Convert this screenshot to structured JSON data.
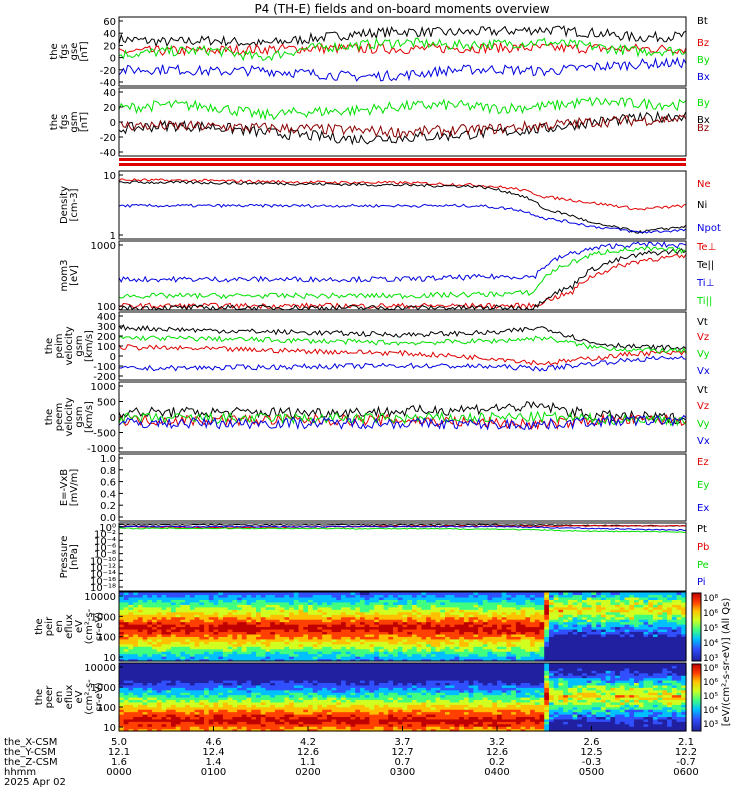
{
  "title": "P4 (TH-E) fields and on-board moments overview",
  "colors": {
    "black": "#000000",
    "red": "#e00000",
    "green": "#00e000",
    "blue": "#0000e0",
    "darkred": "#8b0000"
  },
  "x_axis": {
    "ticks": [
      "0000",
      "0100",
      "0200",
      "0300",
      "0400",
      "0500",
      "0600"
    ],
    "rows": [
      {
        "label": "the_X-CSM",
        "values": [
          "5.0",
          "4.6",
          "4.2",
          "3.7",
          "3.2",
          "2.6",
          "2.1"
        ]
      },
      {
        "label": "the_Y-CSM",
        "values": [
          "12.1",
          "12.4",
          "12.6",
          "12.7",
          "12.6",
          "12.5",
          "12.2"
        ]
      },
      {
        "label": "the_Z-CSM",
        "values": [
          "1.6",
          "1.4",
          "1.1",
          "0.7",
          "0.2",
          "-0.3",
          "-0.7"
        ]
      },
      {
        "label": "hhmm",
        "values": [
          "0000",
          "0100",
          "0200",
          "0300",
          "0400",
          "0500",
          "0600"
        ]
      }
    ],
    "date": "2025 Apr 02"
  },
  "colorbar": {
    "label": "[eV/(cm²-s-sr-eV)] (All Qs)",
    "ticks_top": [
      "10⁸",
      "10⁶",
      "10⁵",
      "10⁴",
      "10³"
    ],
    "ticks_bottom": [
      "10⁸",
      "10⁶",
      "10⁵",
      "10⁴",
      "10³"
    ]
  },
  "chart_data": [
    {
      "type": "line",
      "panel": "fgs_gse",
      "ylabel": [
        "the",
        "fgs",
        "gse",
        "[nT]"
      ],
      "yticks": [
        "60",
        "40",
        "20",
        "0",
        "-20",
        "-40"
      ],
      "ylim": [
        -45,
        65
      ],
      "series": [
        {
          "name": "Bt",
          "color": "#000000",
          "x": [
            0,
            0.5,
            1,
            1.5,
            2,
            2.5,
            3,
            3.5,
            4,
            4.5,
            5,
            5.5,
            6
          ],
          "y": [
            30,
            25,
            28,
            22,
            30,
            38,
            42,
            40,
            42,
            45,
            40,
            32,
            35
          ]
        },
        {
          "name": "Bz",
          "color": "#e00000",
          "x": [
            0,
            1,
            2,
            3,
            4,
            5,
            6
          ],
          "y": [
            10,
            12,
            15,
            14,
            16,
            15,
            14
          ]
        },
        {
          "name": "By",
          "color": "#00e000",
          "x": [
            0,
            0.5,
            1,
            1.5,
            2,
            2.5,
            3,
            3.5,
            4,
            4.5,
            5,
            5.5,
            6
          ],
          "y": [
            5,
            10,
            12,
            0,
            15,
            20,
            25,
            20,
            22,
            25,
            18,
            10,
            12
          ]
        },
        {
          "name": "Bx",
          "color": "#0000e0",
          "x": [
            0,
            0.5,
            1,
            1.5,
            2,
            2.5,
            3,
            3.5,
            4,
            4.5,
            5,
            5.5,
            6
          ],
          "y": [
            -20,
            -18,
            -22,
            -20,
            -25,
            -30,
            -28,
            -20,
            -18,
            -22,
            -15,
            -10,
            -8
          ]
        }
      ]
    },
    {
      "type": "line",
      "panel": "fgs_gsm",
      "ylabel": [
        "the",
        "fgs",
        "gsm",
        "[nT]"
      ],
      "yticks": [
        "40",
        "20",
        "0",
        "-20",
        "-40"
      ],
      "ylim": [
        -55,
        45
      ],
      "series": [
        {
          "name": "By",
          "color": "#00e000",
          "x": [
            0,
            0.5,
            1,
            1.5,
            2,
            2.5,
            3,
            3.5,
            4,
            4.5,
            5,
            5.5,
            6
          ],
          "y": [
            15,
            20,
            18,
            5,
            10,
            12,
            18,
            20,
            15,
            18,
            25,
            22,
            20
          ]
        },
        {
          "name": "Bx",
          "color": "#000000",
          "x": [
            0,
            0.5,
            1,
            1.5,
            2,
            2.5,
            3,
            3.5,
            4,
            4.5,
            5,
            5.5,
            6
          ],
          "y": [
            -15,
            -10,
            -12,
            -20,
            -25,
            -30,
            -28,
            -25,
            -20,
            -15,
            -5,
            0,
            5
          ]
        },
        {
          "name": "Bz",
          "color": "#8b0000",
          "x": [
            0,
            1,
            2,
            3,
            4,
            5,
            6
          ],
          "y": [
            -10,
            -12,
            -15,
            -20,
            -15,
            -5,
            0
          ]
        }
      ]
    },
    {
      "type": "line",
      "panel": "density",
      "ylabel": [
        "Density",
        "[cm-3]"
      ],
      "yscale": "log",
      "yticks": [
        "10",
        "1"
      ],
      "ylim": [
        0.3,
        60
      ],
      "series": [
        {
          "name": "Ne",
          "color": "#e00000",
          "x": [
            0,
            1,
            2,
            3,
            3.8,
            4.2,
            4.5,
            5,
            5.5,
            6
          ],
          "y": [
            30,
            28,
            25,
            24,
            20,
            15,
            8,
            5,
            3,
            4
          ]
        },
        {
          "name": "Ni",
          "color": "#000000",
          "x": [
            0,
            1,
            2,
            3,
            3.8,
            4.2,
            4.5,
            5,
            5.5,
            6
          ],
          "y": [
            25,
            24,
            22,
            20,
            18,
            10,
            3,
            1,
            0.5,
            0.8
          ]
        },
        {
          "name": "Npot",
          "color": "#0000e0",
          "x": [
            0,
            1,
            2,
            3,
            3.8,
            4.2,
            4.5,
            5,
            5.5,
            6
          ],
          "y": [
            4,
            4,
            4,
            4,
            4,
            3,
            1.5,
            0.8,
            0.5,
            0.6
          ]
        }
      ]
    },
    {
      "type": "line",
      "panel": "temperature",
      "ylabel": [
        "mom3",
        "[eV]"
      ],
      "yscale": "log",
      "yticks": [
        "1000",
        "100"
      ],
      "ylim": [
        30,
        3500
      ],
      "series": [
        {
          "name": "Te⊥",
          "color": "#e00000",
          "x": [
            0,
            1,
            2,
            3,
            4,
            4.4,
            4.8,
            5.2,
            5.6,
            6
          ],
          "y": [
            40,
            40,
            40,
            40,
            40,
            40,
            100,
            500,
            1000,
            1200
          ]
        },
        {
          "name": "Te||",
          "color": "#000000",
          "x": [
            0,
            1,
            2,
            3,
            4,
            4.4,
            4.8,
            5.2,
            5.6,
            6
          ],
          "y": [
            35,
            35,
            35,
            35,
            35,
            35,
            150,
            800,
            1500,
            1800
          ]
        },
        {
          "name": "Ti⊥",
          "color": "#0000e0",
          "x": [
            0,
            1,
            2,
            3,
            4,
            4.4,
            4.8,
            5.2,
            5.6,
            6
          ],
          "y": [
            250,
            250,
            250,
            250,
            300,
            300,
            1500,
            2500,
            2800,
            2500
          ]
        },
        {
          "name": "Ti||",
          "color": "#00e000",
          "x": [
            0,
            1,
            2,
            3,
            4,
            4.4,
            4.8,
            5.2,
            5.6,
            6
          ],
          "y": [
            80,
            80,
            80,
            80,
            90,
            100,
            800,
            1800,
            2000,
            1800
          ]
        }
      ]
    },
    {
      "type": "line",
      "panel": "peim_velocity",
      "ylabel": [
        "the",
        "peim",
        "velocity",
        "gsm",
        "[km/s]"
      ],
      "yticks": [
        "400",
        "300",
        "200",
        "100",
        "0",
        "-100",
        "-200"
      ],
      "ylim": [
        -260,
        400
      ],
      "series": [
        {
          "name": "Vt",
          "color": "#000000",
          "x": [
            0,
            1,
            2,
            3,
            4,
            4.5,
            5,
            5.5,
            6
          ],
          "y": [
            250,
            220,
            200,
            180,
            200,
            250,
            100,
            60,
            50
          ]
        },
        {
          "name": "Vz",
          "color": "#e00000",
          "x": [
            0,
            1,
            2,
            3,
            4,
            4.5,
            5,
            5.5,
            6
          ],
          "y": [
            60,
            40,
            20,
            0,
            -50,
            -100,
            -50,
            0,
            0
          ]
        },
        {
          "name": "Vy",
          "color": "#00e000",
          "x": [
            0,
            1,
            2,
            3,
            4,
            4.5,
            5,
            5.5,
            6
          ],
          "y": [
            150,
            140,
            120,
            100,
            120,
            150,
            60,
            30,
            20
          ]
        },
        {
          "name": "Vx",
          "color": "#0000e0",
          "x": [
            0,
            1,
            2,
            3,
            4,
            4.5,
            5,
            5.5,
            6
          ],
          "y": [
            -150,
            -140,
            -130,
            -120,
            -130,
            -150,
            -100,
            -60,
            -40
          ]
        }
      ]
    },
    {
      "type": "line",
      "panel": "peem_velocity",
      "ylabel": [
        "the",
        "peem",
        "velocity",
        "gsm",
        "[km/s]"
      ],
      "yticks": [
        "1000",
        "500",
        "0",
        "-500",
        "-1000"
      ],
      "ylim": [
        -1050,
        1250
      ],
      "series": [
        {
          "name": "Vt",
          "color": "#000000",
          "x": [
            0,
            1,
            2,
            3,
            4,
            4.5,
            5,
            6
          ],
          "y": [
            250,
            250,
            250,
            280,
            400,
            450,
            150,
            50
          ]
        },
        {
          "name": "Vz",
          "color": "#e00000",
          "x": [
            0,
            1,
            2,
            3,
            4,
            4.5,
            5,
            6
          ],
          "y": [
            0,
            0,
            0,
            0,
            -100,
            -150,
            0,
            0
          ]
        },
        {
          "name": "Vy",
          "color": "#00e000",
          "x": [
            0,
            1,
            2,
            3,
            4,
            4.5,
            5,
            6
          ],
          "y": [
            50,
            50,
            50,
            50,
            80,
            100,
            30,
            0
          ]
        },
        {
          "name": "Vx",
          "color": "#0000e0",
          "x": [
            0,
            1,
            2,
            3,
            4,
            4.5,
            5,
            6
          ],
          "y": [
            -100,
            -100,
            -100,
            -100,
            -150,
            -150,
            -50,
            0
          ]
        }
      ]
    },
    {
      "type": "line",
      "panel": "e_field",
      "ylabel": [
        "E=-VxB",
        "[mV/m]"
      ],
      "yticks": [
        "1.0",
        "0.8",
        "0.6",
        "0.4",
        "0.2",
        "0.0"
      ],
      "ylim": [
        0,
        1
      ],
      "series": [
        {
          "name": "Ez",
          "color": "#e00000",
          "x": [],
          "y": []
        },
        {
          "name": "Ey",
          "color": "#00e000",
          "x": [],
          "y": []
        },
        {
          "name": "Ex",
          "color": "#0000e0",
          "x": [],
          "y": []
        }
      ]
    },
    {
      "type": "line",
      "panel": "pressure",
      "ylabel": [
        "Pressure",
        "[nPa]"
      ],
      "yscale": "log",
      "yticks": [
        "10⁰",
        "10⁻²",
        "10⁻⁴",
        "10⁻⁶",
        "10⁻⁸",
        "10⁻¹⁰",
        "10⁻¹²",
        "10⁻¹⁴",
        "10⁻¹⁶",
        "10⁻¹⁸"
      ],
      "ylim": [
        -18.5,
        0.5
      ],
      "series": [
        {
          "name": "Pt",
          "color": "#000000",
          "x": [
            0,
            1,
            2,
            3,
            4,
            5,
            6
          ],
          "y": [
            0.0,
            0.0,
            0.0,
            0.0,
            0.0,
            -0.2,
            -0.3
          ]
        },
        {
          "name": "Pb",
          "color": "#e00000",
          "x": [
            0,
            1,
            2,
            3,
            4,
            5,
            6
          ],
          "y": [
            -0.5,
            -0.8,
            -0.6,
            -0.4,
            -0.4,
            -0.3,
            -0.3
          ]
        },
        {
          "name": "Pe",
          "color": "#00e000",
          "x": [
            0,
            1,
            2,
            3,
            4,
            5,
            6
          ],
          "y": [
            -1.0,
            -1.0,
            -1.0,
            -1.1,
            -1.2,
            -1.8,
            -2.0
          ]
        },
        {
          "name": "Pi",
          "color": "#0000e0",
          "x": [
            0,
            1,
            2,
            3,
            4,
            5,
            6
          ],
          "y": [
            -0.5,
            -0.5,
            -0.5,
            -0.5,
            -0.5,
            -1.0,
            -1.5
          ]
        }
      ]
    },
    {
      "type": "heatmap",
      "panel": "peir_en_eflux",
      "ylabel": [
        "the",
        "peir",
        "en",
        "eflux",
        "eV",
        "(cm²-s-",
        "sr-eV)"
      ],
      "yticks": [
        "10000",
        "1000",
        "100",
        "10"
      ],
      "yscale": "log",
      "ylim": [
        5,
        25000
      ],
      "band_peak_energy_before_0430": 300,
      "band_peak_energy_after_0430": 3000
    },
    {
      "type": "heatmap",
      "panel": "peer_en_eflux",
      "ylabel": [
        "the",
        "peer",
        "en",
        "eflux",
        "eV",
        "(cm²-s-",
        "sr-eV)"
      ],
      "yticks": [
        "10000",
        "1000",
        "100",
        "10"
      ],
      "yscale": "log",
      "ylim": [
        5,
        25000
      ],
      "band_peak_energy_before_0430": 20,
      "band_peak_energy_after_0430": 400
    }
  ]
}
